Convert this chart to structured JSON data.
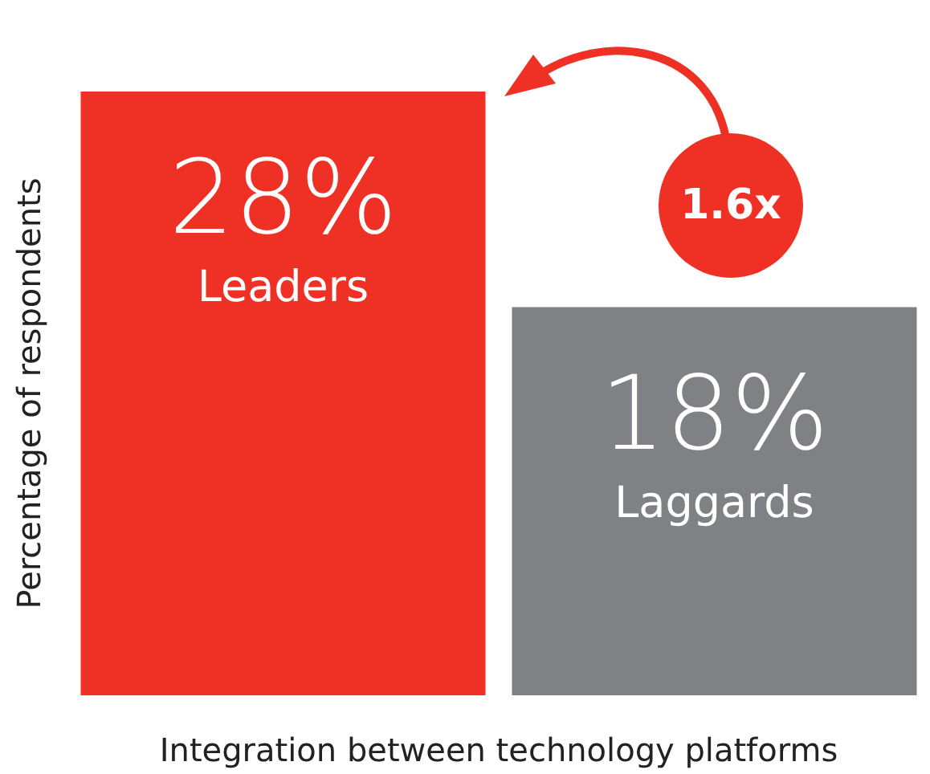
{
  "chart_data": {
    "type": "bar",
    "xlabel": "Integration between technology platforms",
    "ylabel": "Percentage of respondents",
    "categories": [
      "Leaders",
      "Laggards"
    ],
    "values": [
      28,
      18
    ],
    "colors": [
      "#ee3124",
      "#808184"
    ],
    "value_labels": [
      "28%",
      "18%"
    ],
    "annotations": [
      "1.6x"
    ]
  }
}
